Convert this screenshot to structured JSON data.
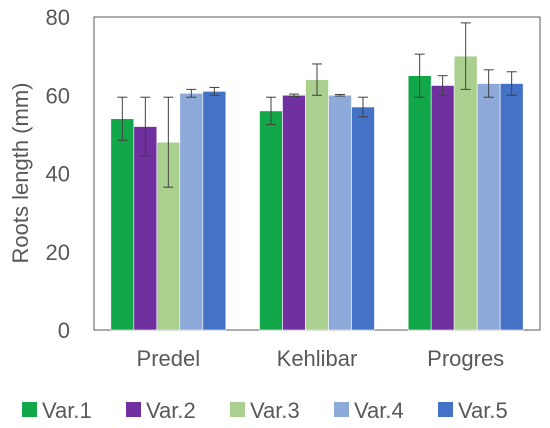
{
  "chart_data": {
    "type": "bar",
    "title": "",
    "xlabel": "",
    "ylabel": "Roots length (mm)",
    "ylim": [
      0,
      80
    ],
    "yticks": [
      0,
      20,
      40,
      60,
      80
    ],
    "grid": false,
    "legend_position": "bottom",
    "error_bars": true,
    "categories": [
      "Predel",
      "Kehlibar",
      "Progres"
    ],
    "series": [
      {
        "name": "Var.1",
        "color": "#12a84a",
        "values": [
          54,
          56,
          65
        ],
        "errors": [
          5.5,
          3.5,
          5.5
        ]
      },
      {
        "name": "Var.2",
        "color": "#7030a0",
        "values": [
          52,
          60,
          62.5
        ],
        "errors": [
          7.5,
          0.3,
          2.5
        ]
      },
      {
        "name": "Var.3",
        "color": "#a9d08e",
        "values": [
          48,
          64,
          70
        ],
        "errors": [
          11.5,
          4,
          8.5
        ]
      },
      {
        "name": "Var.4",
        "color": "#8eaadb",
        "values": [
          60.5,
          60,
          63
        ],
        "errors": [
          1,
          0.2,
          3.5
        ]
      },
      {
        "name": "Var.5",
        "color": "#4472c4",
        "values": [
          61,
          57,
          63
        ],
        "errors": [
          1,
          2.5,
          3
        ]
      }
    ]
  }
}
